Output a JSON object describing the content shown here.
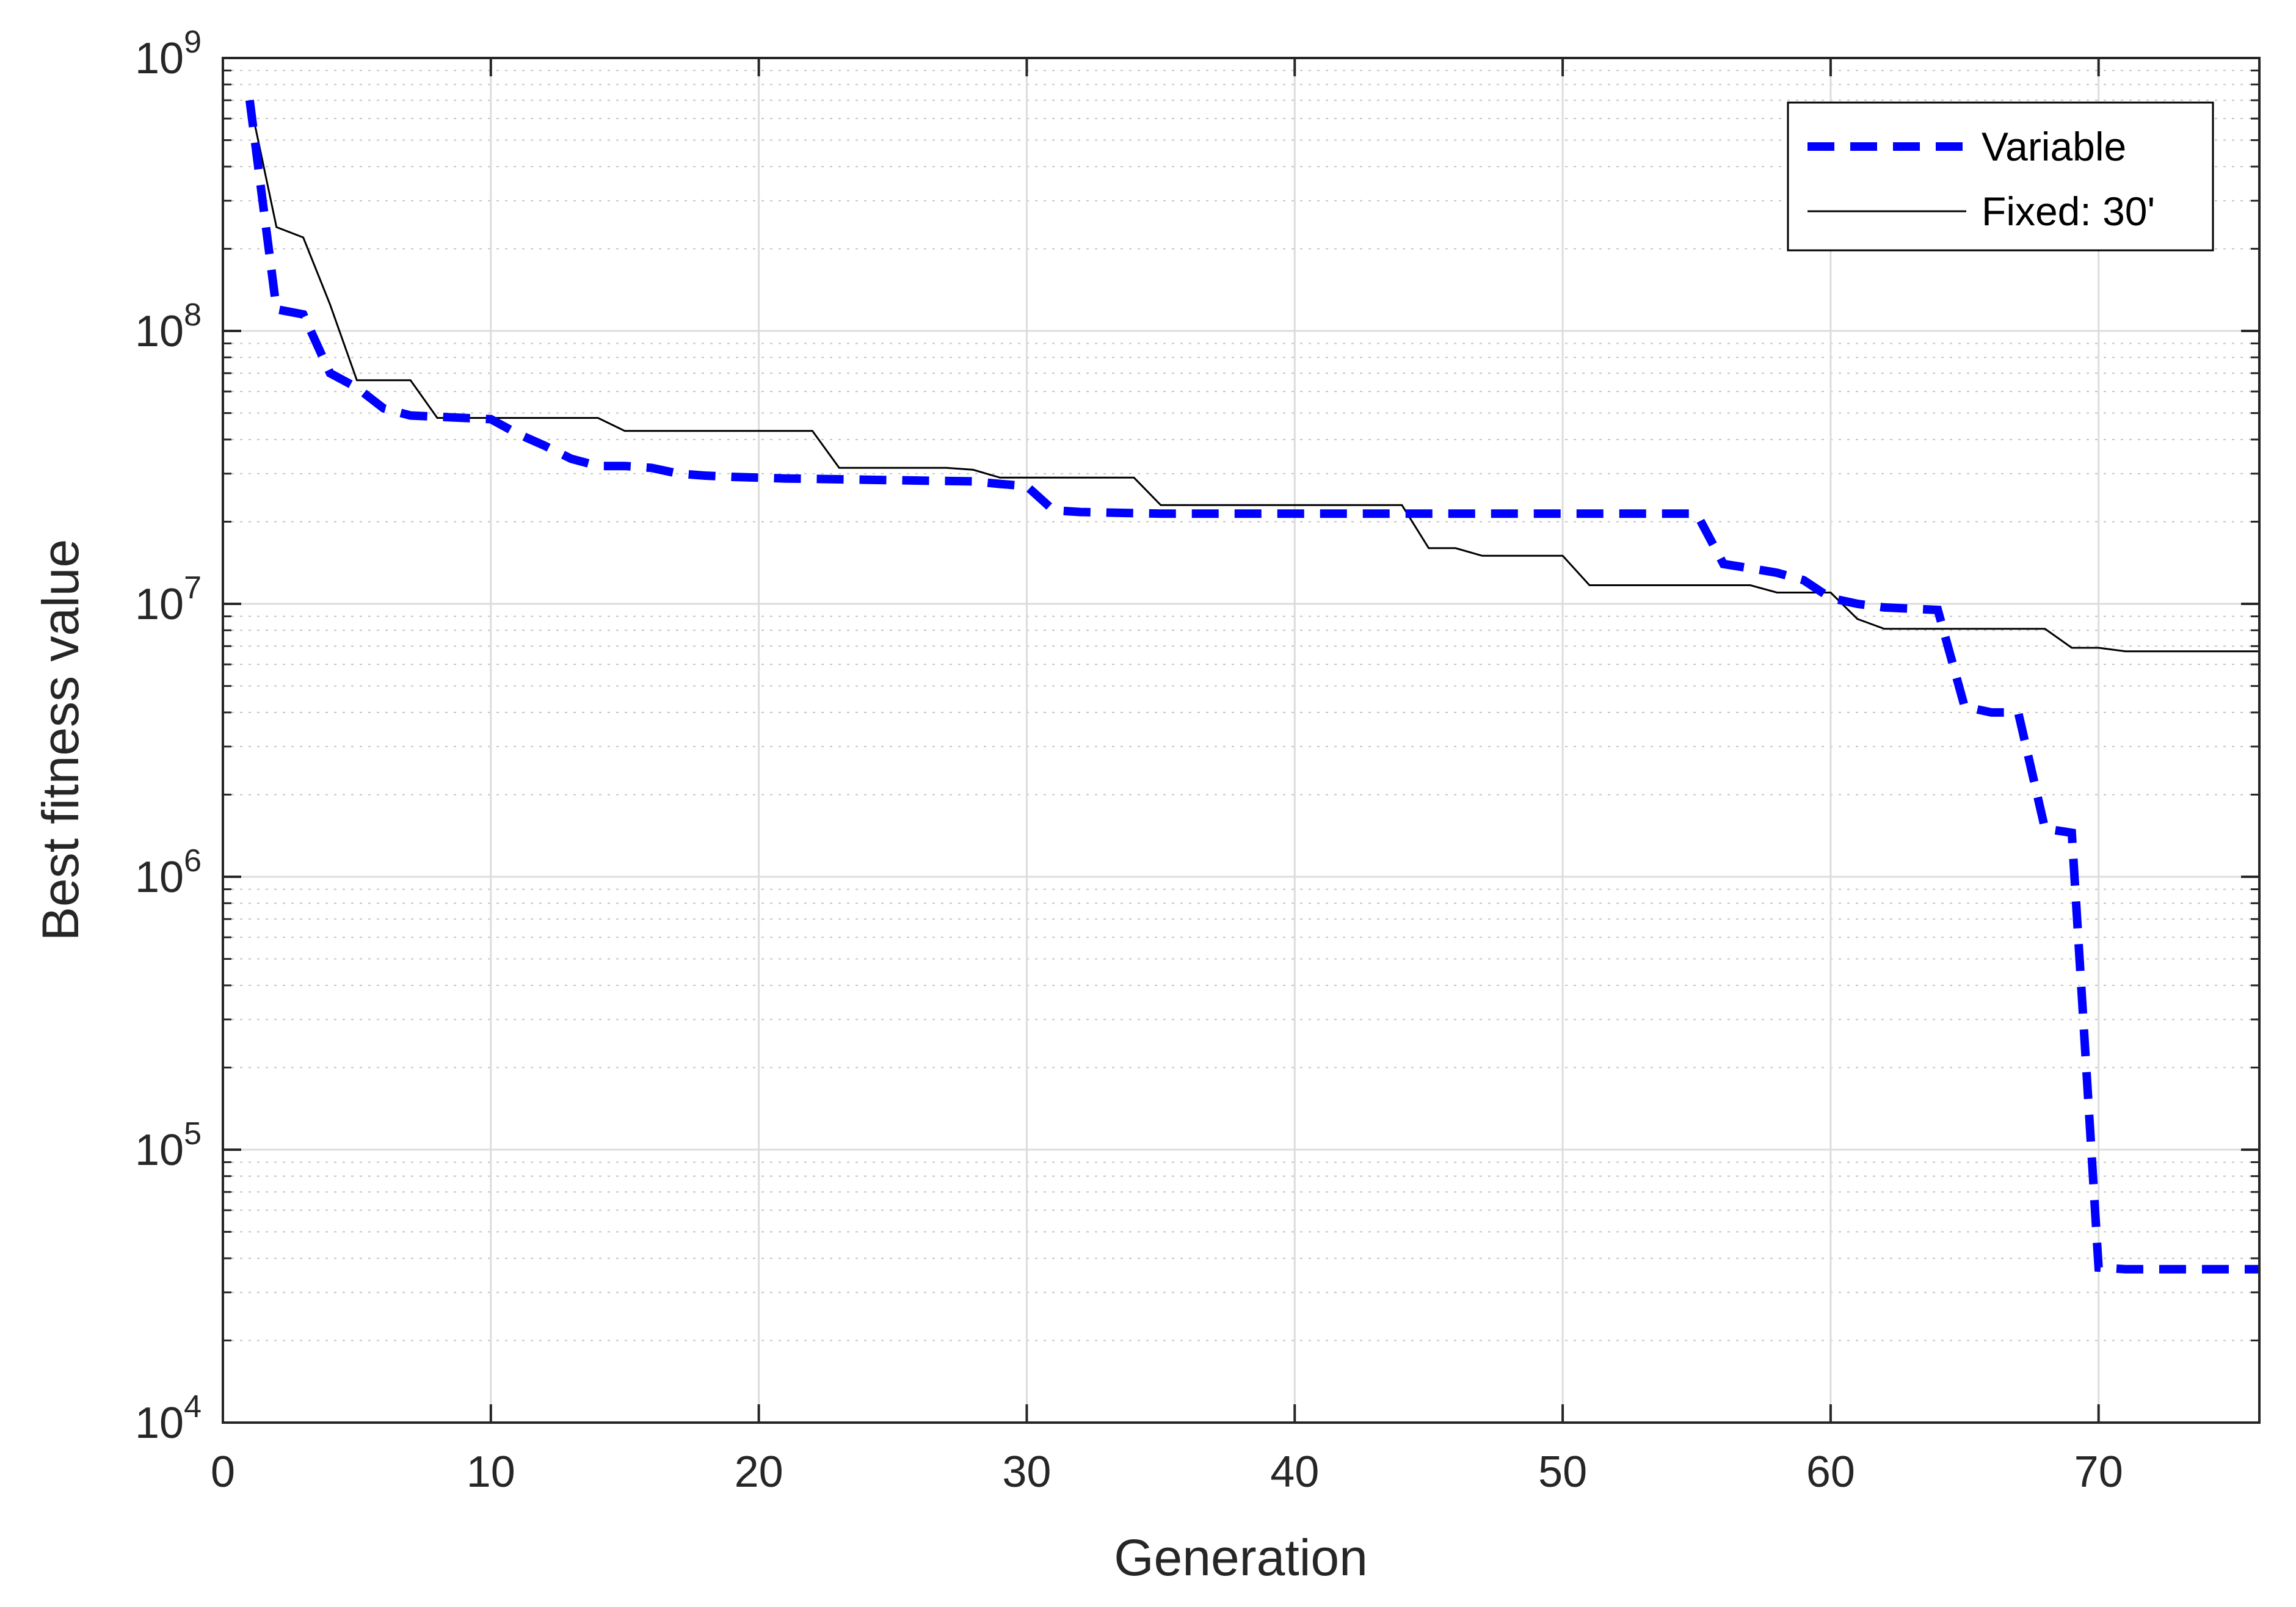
{
  "chart_data": {
    "type": "line",
    "title": "",
    "xlabel": "Generation",
    "ylabel": "Best fitness value",
    "xlim": [
      0,
      76
    ],
    "ylim": [
      10000,
      1000000000
    ],
    "y_scale": "log",
    "grid": true,
    "minor_grid": true,
    "x_ticks": [
      0,
      10,
      20,
      30,
      40,
      50,
      60,
      70
    ],
    "x_tick_labels": [
      "0",
      "10",
      "20",
      "30",
      "40",
      "50",
      "60",
      "70"
    ],
    "y_ticks": [
      {
        "value": 10000,
        "base": "10",
        "exp": "4"
      },
      {
        "value": 100000,
        "base": "10",
        "exp": "5"
      },
      {
        "value": 1000000,
        "base": "10",
        "exp": "6"
      },
      {
        "value": 10000000,
        "base": "10",
        "exp": "7"
      },
      {
        "value": 100000000,
        "base": "10",
        "exp": "8"
      },
      {
        "value": 1000000000,
        "base": "10",
        "exp": "9"
      }
    ],
    "legend_position": "top-right",
    "series": [
      {
        "name": "Variable",
        "color": "#0000ff",
        "style": "dashed",
        "x": [
          1,
          2,
          3,
          4,
          5,
          6,
          7,
          8,
          9,
          10,
          11,
          12,
          13,
          14,
          15,
          16,
          17,
          18,
          19,
          20,
          21,
          22,
          23,
          24,
          25,
          26,
          27,
          28,
          29,
          30,
          31,
          32,
          33,
          34,
          35,
          36,
          37,
          38,
          39,
          40,
          41,
          42,
          43,
          44,
          45,
          46,
          47,
          48,
          49,
          50,
          51,
          52,
          53,
          54,
          55,
          56,
          57,
          58,
          59,
          60,
          61,
          62,
          63,
          64,
          65,
          66,
          67,
          68,
          69,
          70,
          71,
          72,
          73,
          74,
          75,
          76
        ],
        "y": [
          700000000,
          120000000,
          115000000,
          70000000,
          62000000,
          52000000,
          49000000,
          48500000,
          48000000,
          47500000,
          42000000,
          38000000,
          34000000,
          32000000,
          32000000,
          31500000,
          30000000,
          29500000,
          29200000,
          29000000,
          28800000,
          28700000,
          28600000,
          28500000,
          28400000,
          28300000,
          28200000,
          28100000,
          27500000,
          27000000,
          22000000,
          21700000,
          21600000,
          21500000,
          21400000,
          21400000,
          21400000,
          21400000,
          21400000,
          21400000,
          21400000,
          21400000,
          21400000,
          21400000,
          21400000,
          21400000,
          21400000,
          21400000,
          21400000,
          21400000,
          21400000,
          21400000,
          21400000,
          21400000,
          21400000,
          14000000,
          13500000,
          13000000,
          12200000,
          10500000,
          10000000,
          9700000,
          9600000,
          9500000,
          4200000,
          4000000,
          4000000,
          1500000,
          1450000,
          37000,
          36500,
          36500,
          36500,
          36500,
          36500,
          36500
        ]
      },
      {
        "name": "Fixed: 30'",
        "color": "#000000",
        "style": "solid",
        "x": [
          1,
          2,
          3,
          4,
          5,
          6,
          7,
          8,
          9,
          10,
          11,
          12,
          13,
          14,
          15,
          16,
          17,
          18,
          19,
          20,
          21,
          22,
          23,
          24,
          25,
          26,
          27,
          28,
          29,
          30,
          31,
          32,
          33,
          34,
          35,
          36,
          37,
          38,
          39,
          40,
          41,
          42,
          43,
          44,
          45,
          46,
          47,
          48,
          49,
          50,
          51,
          52,
          53,
          54,
          55,
          56,
          57,
          58,
          59,
          60,
          61,
          62,
          63,
          64,
          65,
          66,
          67,
          68,
          69,
          70,
          71,
          72,
          73,
          74,
          75,
          76
        ],
        "y": [
          700000000,
          240000000,
          220000000,
          125000000,
          66000000,
          66000000,
          66000000,
          48000000,
          48000000,
          48000000,
          48000000,
          48000000,
          48000000,
          48000000,
          43000000,
          43000000,
          43000000,
          43000000,
          43000000,
          43000000,
          43000000,
          43000000,
          31500000,
          31500000,
          31500000,
          31500000,
          31500000,
          31000000,
          29000000,
          29000000,
          29000000,
          29000000,
          29000000,
          29000000,
          23000000,
          23000000,
          23000000,
          23000000,
          23000000,
          23000000,
          23000000,
          23000000,
          23000000,
          23000000,
          16000000,
          16000000,
          15000000,
          15000000,
          15000000,
          15000000,
          11700000,
          11700000,
          11700000,
          11700000,
          11700000,
          11700000,
          11700000,
          11000000,
          11000000,
          11000000,
          8800000,
          8100000,
          8100000,
          8100000,
          8100000,
          8100000,
          8100000,
          8100000,
          6900000,
          6900000,
          6700000,
          6700000,
          6700000,
          6700000,
          6700000,
          6700000
        ]
      }
    ]
  }
}
